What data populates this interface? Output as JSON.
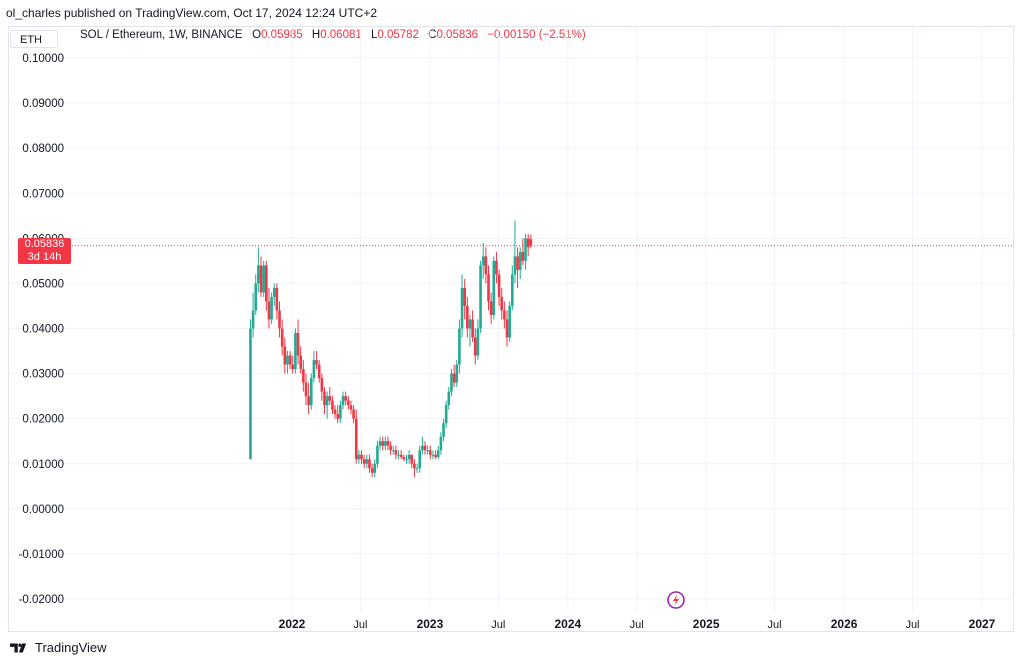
{
  "header": {
    "publisher": "ol_charles published on TradingView.com, Oct 17, 2024 12:24 UTC+2"
  },
  "symbol_tab": "ETH",
  "legend": {
    "title": "SOL / Ethereum, 1W, BINANCE",
    "o_label": "O",
    "o_value": "0.05985",
    "h_label": "H",
    "h_value": "0.06081",
    "l_label": "L",
    "l_value": "0.05782",
    "c_label": "C",
    "c_value": "0.05836",
    "change": "−0.00150 (−2.51%)"
  },
  "price_label": {
    "value": "0.05836",
    "countdown": "3d 14h"
  },
  "footer": {
    "brand": "TradingView"
  },
  "colors": {
    "up": "#22ab94",
    "down": "#f23645",
    "grid": "#f0f3fa",
    "text": "#131722",
    "accent_icon": "#9c27b0"
  },
  "chart_data": {
    "type": "candlestick",
    "title": "SOL / Ethereum, 1W, BINANCE",
    "ylim": [
      -0.025,
      0.105
    ],
    "y_ticks": [
      "0.10000",
      "0.09000",
      "0.08000",
      "0.07000",
      "0.06000",
      "0.05000",
      "0.04000",
      "0.03000",
      "0.02000",
      "0.01000",
      "0.00000",
      "-0.01000",
      "-0.02000"
    ],
    "x_ticks": [
      {
        "label": "2022",
        "date": "2022-01-01",
        "bold": true
      },
      {
        "label": "Jul",
        "date": "2022-07-01",
        "bold": false
      },
      {
        "label": "2023",
        "date": "2023-01-01",
        "bold": true
      },
      {
        "label": "Jul",
        "date": "2023-07-01",
        "bold": false
      },
      {
        "label": "2024",
        "date": "2024-01-01",
        "bold": true
      },
      {
        "label": "Jul",
        "date": "2024-07-01",
        "bold": false
      },
      {
        "label": "2025",
        "date": "2025-01-01",
        "bold": true
      },
      {
        "label": "Jul",
        "date": "2025-07-01",
        "bold": false
      },
      {
        "label": "2026",
        "date": "2026-01-01",
        "bold": true
      },
      {
        "label": "Jul",
        "date": "2026-07-01",
        "bold": false
      },
      {
        "label": "2027",
        "date": "2027-01-01",
        "bold": true
      }
    ],
    "last_price": 0.05836,
    "grid": true,
    "series": {
      "name": "SOL / Ethereum",
      "start_date": "2021-09-13",
      "interval": "1W",
      "ohlc": [
        [
          0.011,
          0.042,
          0.011,
          0.04
        ],
        [
          0.04,
          0.048,
          0.038,
          0.044
        ],
        [
          0.044,
          0.052,
          0.043,
          0.05
        ],
        [
          0.05,
          0.058,
          0.048,
          0.054
        ],
        [
          0.054,
          0.056,
          0.047,
          0.048
        ],
        [
          0.048,
          0.055,
          0.047,
          0.054
        ],
        [
          0.054,
          0.055,
          0.044,
          0.046
        ],
        [
          0.046,
          0.049,
          0.04,
          0.042
        ],
        [
          0.042,
          0.048,
          0.041,
          0.047
        ],
        [
          0.047,
          0.05,
          0.045,
          0.049
        ],
        [
          0.049,
          0.05,
          0.042,
          0.044
        ],
        [
          0.044,
          0.046,
          0.038,
          0.04
        ],
        [
          0.04,
          0.042,
          0.034,
          0.036
        ],
        [
          0.036,
          0.038,
          0.03,
          0.032
        ],
        [
          0.032,
          0.035,
          0.03,
          0.034
        ],
        [
          0.034,
          0.035,
          0.031,
          0.032
        ],
        [
          0.032,
          0.034,
          0.03,
          0.031
        ],
        [
          0.031,
          0.04,
          0.03,
          0.039
        ],
        [
          0.039,
          0.042,
          0.032,
          0.034
        ],
        [
          0.034,
          0.036,
          0.03,
          0.031
        ],
        [
          0.031,
          0.033,
          0.026,
          0.028
        ],
        [
          0.028,
          0.03,
          0.023,
          0.025
        ],
        [
          0.025,
          0.028,
          0.021,
          0.023
        ],
        [
          0.023,
          0.03,
          0.022,
          0.029
        ],
        [
          0.029,
          0.035,
          0.028,
          0.033
        ],
        [
          0.033,
          0.035,
          0.031,
          0.032
        ],
        [
          0.032,
          0.033,
          0.028,
          0.029
        ],
        [
          0.029,
          0.03,
          0.024,
          0.026
        ],
        [
          0.026,
          0.027,
          0.021,
          0.023
        ],
        [
          0.023,
          0.026,
          0.02,
          0.025
        ],
        [
          0.025,
          0.027,
          0.023,
          0.024
        ],
        [
          0.024,
          0.025,
          0.021,
          0.022
        ],
        [
          0.022,
          0.023,
          0.02,
          0.021
        ],
        [
          0.021,
          0.023,
          0.019,
          0.02
        ],
        [
          0.02,
          0.024,
          0.019,
          0.023
        ],
        [
          0.023,
          0.026,
          0.022,
          0.025
        ],
        [
          0.025,
          0.026,
          0.023,
          0.024
        ],
        [
          0.024,
          0.025,
          0.022,
          0.023
        ],
        [
          0.023,
          0.024,
          0.021,
          0.022
        ],
        [
          0.022,
          0.023,
          0.019,
          0.02
        ],
        [
          0.02,
          0.022,
          0.01,
          0.011
        ],
        [
          0.011,
          0.013,
          0.01,
          0.012
        ],
        [
          0.012,
          0.013,
          0.01,
          0.011
        ],
        [
          0.011,
          0.012,
          0.009,
          0.01
        ],
        [
          0.01,
          0.012,
          0.009,
          0.011
        ],
        [
          0.011,
          0.012,
          0.008,
          0.009
        ],
        [
          0.009,
          0.01,
          0.007,
          0.008
        ],
        [
          0.008,
          0.011,
          0.007,
          0.01
        ],
        [
          0.01,
          0.015,
          0.009,
          0.014
        ],
        [
          0.014,
          0.016,
          0.013,
          0.015
        ],
        [
          0.015,
          0.016,
          0.013,
          0.014
        ],
        [
          0.014,
          0.016,
          0.013,
          0.015
        ],
        [
          0.015,
          0.016,
          0.013,
          0.014
        ],
        [
          0.014,
          0.015,
          0.012,
          0.013
        ],
        [
          0.013,
          0.014,
          0.012,
          0.013
        ],
        [
          0.013,
          0.014,
          0.011,
          0.012
        ],
        [
          0.012,
          0.013,
          0.011,
          0.012
        ],
        [
          0.012,
          0.013,
          0.011,
          0.0115
        ],
        [
          0.0115,
          0.012,
          0.0105,
          0.011
        ],
        [
          0.011,
          0.012,
          0.01,
          0.011
        ],
        [
          0.011,
          0.013,
          0.01,
          0.012
        ],
        [
          0.012,
          0.012,
          0.009,
          0.01
        ],
        [
          0.01,
          0.011,
          0.007,
          0.009
        ],
        [
          0.009,
          0.01,
          0.008,
          0.009
        ],
        [
          0.009,
          0.014,
          0.008,
          0.013
        ],
        [
          0.013,
          0.016,
          0.012,
          0.014
        ],
        [
          0.014,
          0.015,
          0.012,
          0.013
        ],
        [
          0.013,
          0.014,
          0.012,
          0.013
        ],
        [
          0.013,
          0.014,
          0.011,
          0.012
        ],
        [
          0.012,
          0.013,
          0.011,
          0.012
        ],
        [
          0.012,
          0.013,
          0.011,
          0.0115
        ],
        [
          0.0115,
          0.014,
          0.011,
          0.013
        ],
        [
          0.013,
          0.017,
          0.012,
          0.016
        ],
        [
          0.016,
          0.02,
          0.015,
          0.019
        ],
        [
          0.019,
          0.024,
          0.018,
          0.023
        ],
        [
          0.023,
          0.027,
          0.022,
          0.026
        ],
        [
          0.026,
          0.031,
          0.025,
          0.03
        ],
        [
          0.03,
          0.032,
          0.027,
          0.028
        ],
        [
          0.028,
          0.033,
          0.027,
          0.032
        ],
        [
          0.032,
          0.042,
          0.03,
          0.04
        ],
        [
          0.04,
          0.052,
          0.038,
          0.049
        ],
        [
          0.049,
          0.051,
          0.042,
          0.045
        ],
        [
          0.045,
          0.047,
          0.038,
          0.04
        ],
        [
          0.04,
          0.043,
          0.036,
          0.042
        ],
        [
          0.042,
          0.044,
          0.037,
          0.038
        ],
        [
          0.038,
          0.04,
          0.032,
          0.034
        ],
        [
          0.034,
          0.042,
          0.033,
          0.04
        ],
        [
          0.04,
          0.055,
          0.039,
          0.054
        ],
        [
          0.054,
          0.059,
          0.051,
          0.056
        ],
        [
          0.056,
          0.058,
          0.05,
          0.052
        ],
        [
          0.052,
          0.054,
          0.044,
          0.046
        ],
        [
          0.046,
          0.048,
          0.041,
          0.043
        ],
        [
          0.043,
          0.056,
          0.042,
          0.055
        ],
        [
          0.055,
          0.057,
          0.05,
          0.052
        ],
        [
          0.052,
          0.053,
          0.045,
          0.047
        ],
        [
          0.047,
          0.049,
          0.042,
          0.044
        ],
        [
          0.044,
          0.046,
          0.04,
          0.042
        ],
        [
          0.042,
          0.044,
          0.036,
          0.038
        ],
        [
          0.038,
          0.046,
          0.037,
          0.045
        ],
        [
          0.045,
          0.054,
          0.044,
          0.052
        ],
        [
          0.052,
          0.064,
          0.05,
          0.056
        ],
        [
          0.056,
          0.058,
          0.049,
          0.053
        ],
        [
          0.053,
          0.058,
          0.051,
          0.057
        ],
        [
          0.057,
          0.06,
          0.054,
          0.055
        ],
        [
          0.055,
          0.061,
          0.053,
          0.06
        ],
        [
          0.06,
          0.061,
          0.056,
          0.058
        ],
        [
          0.0598,
          0.0608,
          0.0578,
          0.0584
        ]
      ]
    }
  }
}
